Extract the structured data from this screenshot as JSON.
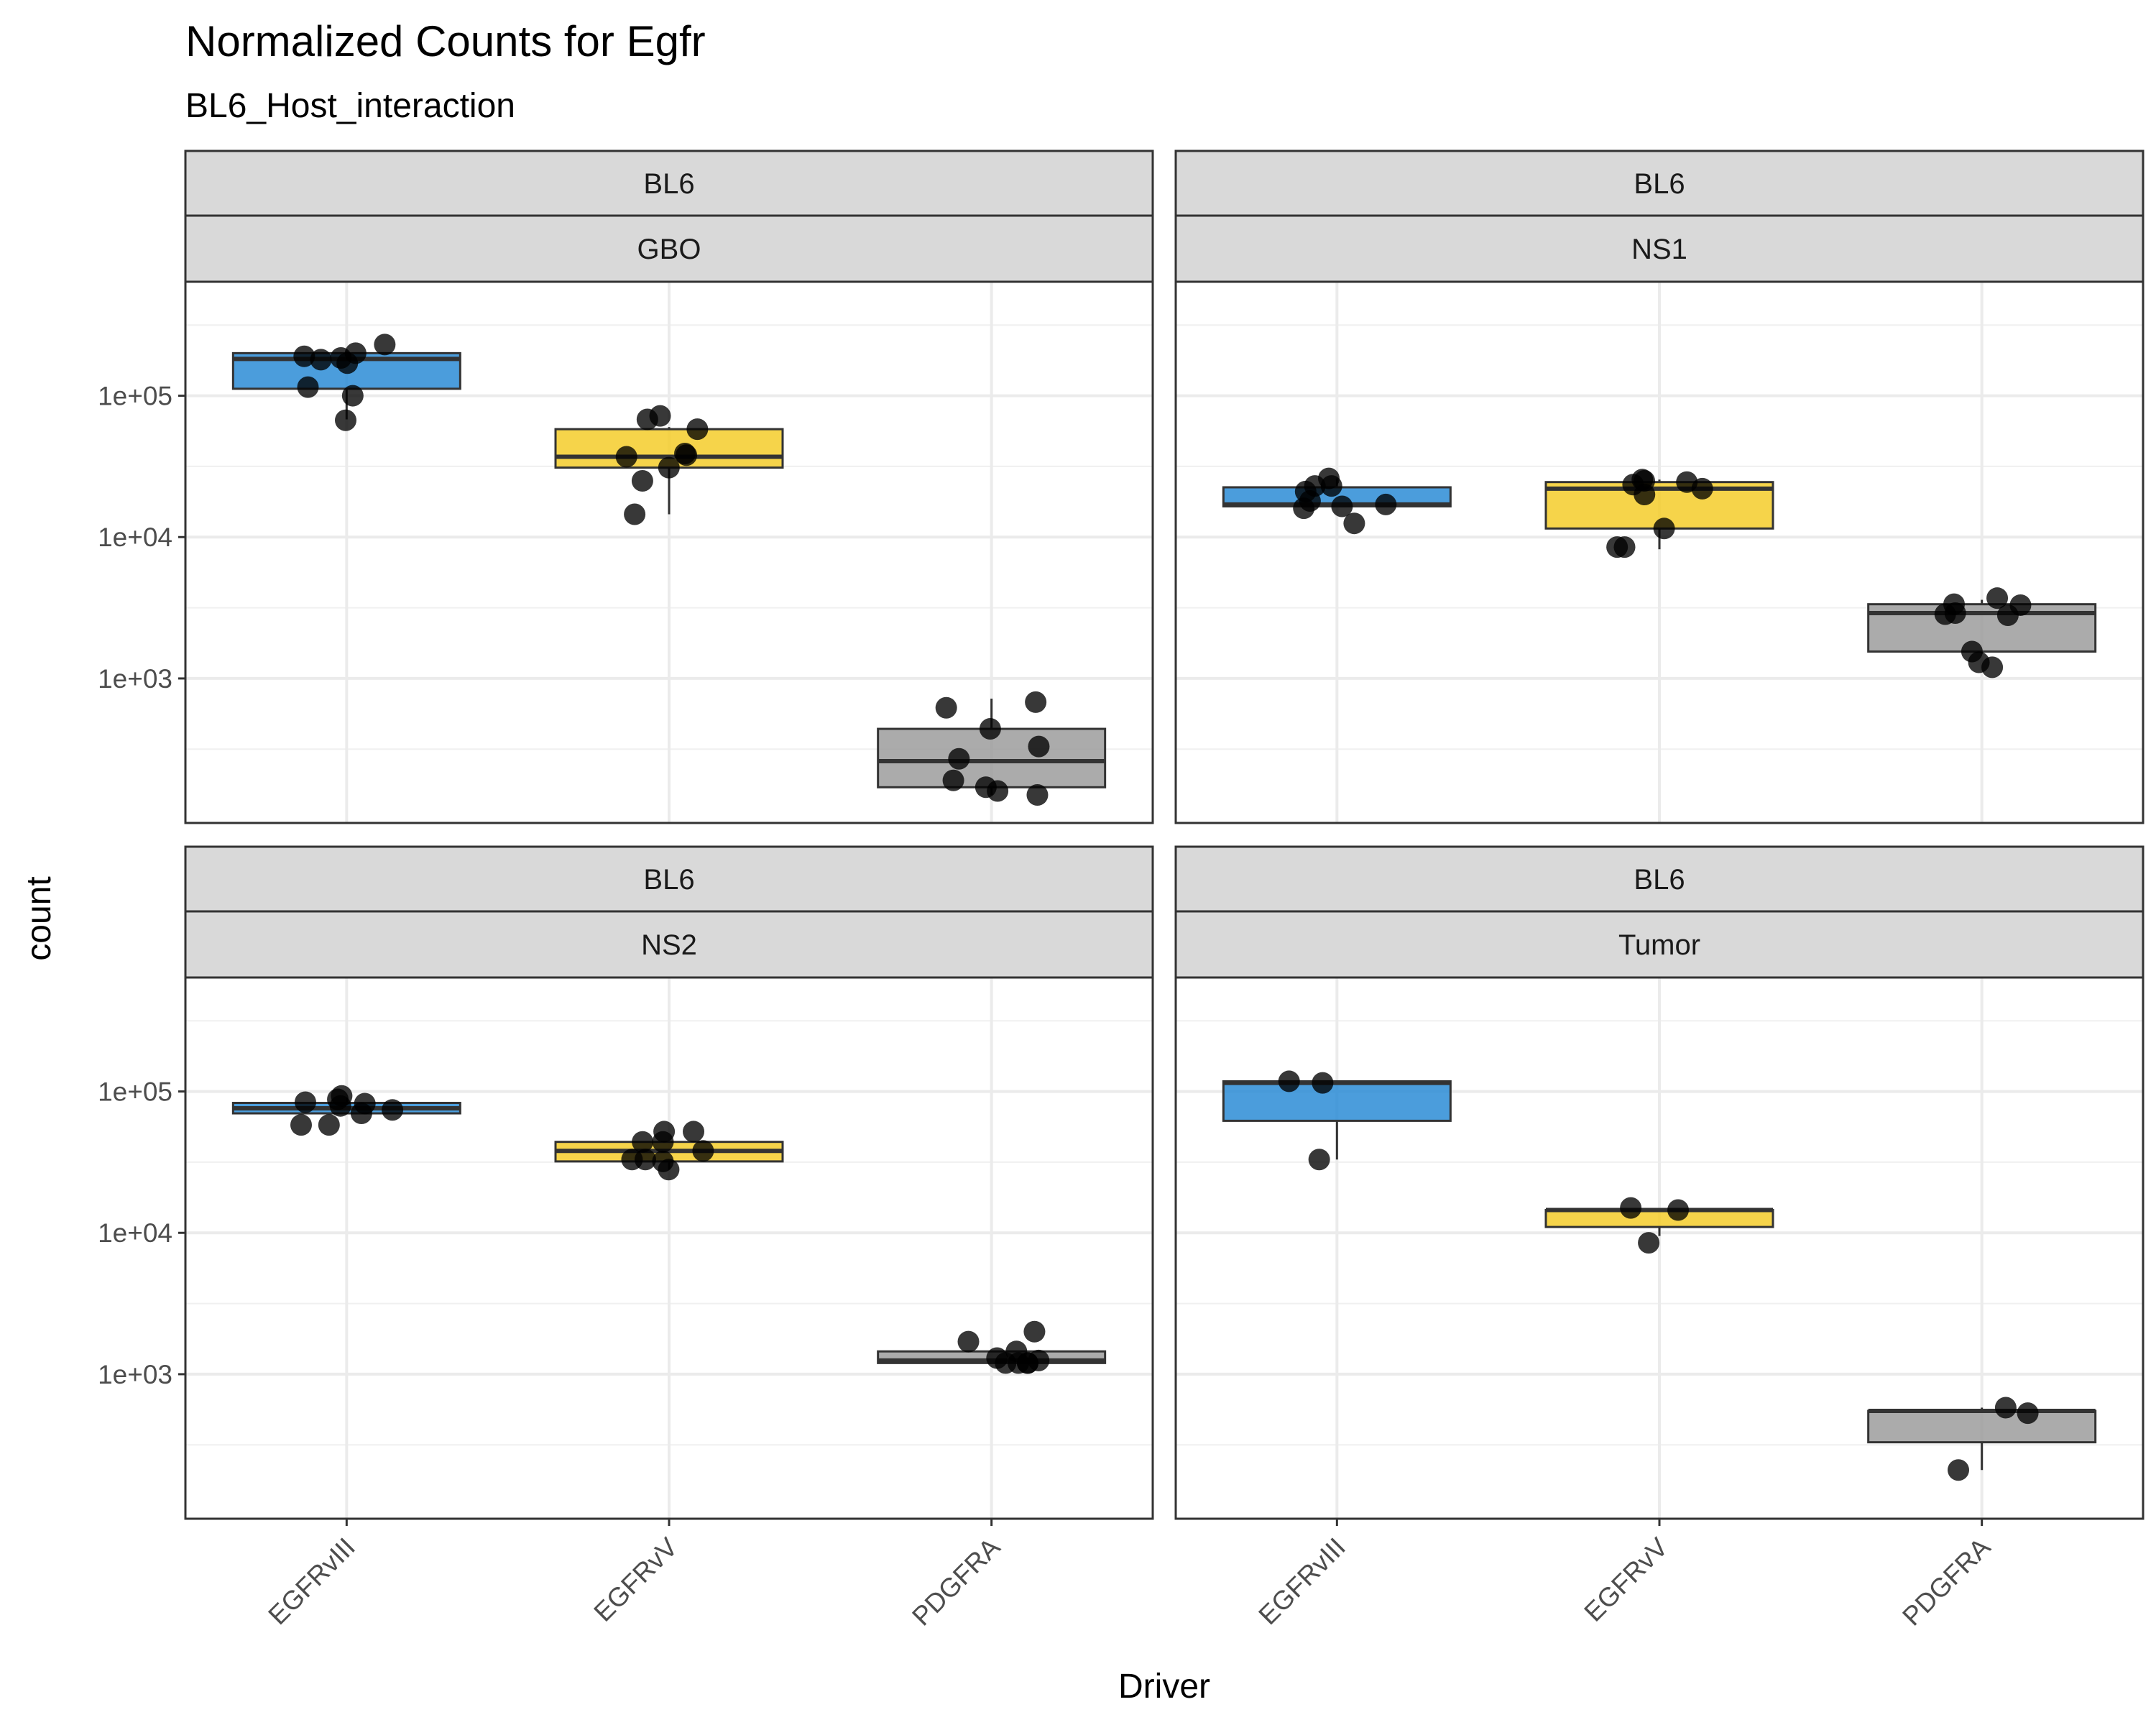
{
  "chart_data": {
    "type": "box",
    "title": "Normalized Counts for Egfr",
    "subtitle": "BL6_Host_interaction",
    "xlabel": "Driver",
    "ylabel": "count",
    "y_scale": "log10",
    "y_ticks": [
      1000,
      10000,
      100000
    ],
    "y_tick_labels": [
      "1e+03",
      "1e+04",
      "1e+05"
    ],
    "ylim": [
      95,
      640000
    ],
    "categories": [
      "EGFRvIII",
      "EGFRvV",
      "PDGFRA"
    ],
    "colors": {
      "EGFRvIII": "#2b8cd6",
      "EGFRvV": "#f5cd2a",
      "PDGFRA": "#9c9c9c"
    },
    "grid": true,
    "legend": "none",
    "panels": [
      {
        "strip_top": "BL6",
        "strip_bottom": "GBO",
        "boxes": {
          "EGFRvIII": {
            "whisker_low": 68000,
            "q1": 112000,
            "median": 182000,
            "q3": 200000,
            "whisker_high": 205000
          },
          "EGFRvV": {
            "whisker_low": 14500,
            "q1": 31000,
            "median": 37000,
            "q3": 58000,
            "whisker_high": 60000
          },
          "PDGFRA": {
            "whisker_low": 150,
            "q1": 170,
            "median": 260,
            "q3": 440,
            "whisker_high": 720
          }
        },
        "points": {
          "EGFRvIII": [
            67000,
            100000,
            115000,
            180000,
            185000,
            170000,
            190000,
            230000,
            200000
          ],
          "EGFRvV": [
            72000,
            68000,
            58000,
            39000,
            37000,
            31000,
            25000,
            38000,
            14500
          ],
          "PDGFRA": [
            160,
            440,
            270,
            620,
            680,
            330,
            190,
            170,
            150
          ]
        }
      },
      {
        "strip_top": "BL6",
        "strip_bottom": "NS1",
        "boxes": {
          "EGFRvIII": {
            "whisker_low": 16500,
            "q1": 16500,
            "median": 17000,
            "q3": 22500,
            "whisker_high": 26000
          },
          "EGFRvV": {
            "whisker_low": 8200,
            "q1": 11500,
            "median": 22000,
            "q3": 24500,
            "whisker_high": 25500
          },
          "PDGFRA": {
            "whisker_low": 1500,
            "q1": 1550,
            "median": 2900,
            "q3": 3350,
            "whisker_high": 3600
          }
        },
        "points": {
          "EGFRvIII": [
            21000,
            26000,
            16500,
            12500,
            23000,
            16000,
            17000,
            23000,
            18000
          ],
          "EGFRvV": [
            11500,
            25500,
            8500,
            24500,
            20000,
            25000,
            8500,
            22000,
            23500
          ],
          "PDGFRA": [
            3300,
            1300,
            2900,
            1200,
            1550,
            2800,
            3700,
            2850,
            3350
          ]
        }
      },
      {
        "strip_top": "BL6",
        "strip_bottom": "NS2",
        "boxes": {
          "EGFRvIII": {
            "whisker_low": 70000,
            "q1": 70000,
            "median": 76000,
            "q3": 83000,
            "whisker_high": 90000
          },
          "EGFRvV": {
            "whisker_low": 28000,
            "q1": 32000,
            "median": 38000,
            "q3": 44000,
            "whisker_high": 44000
          },
          "PDGFRA": {
            "whisker_low": 1200,
            "q1": 1200,
            "median": 1250,
            "q3": 1450,
            "whisker_high": 1450
          }
        },
        "points": {
          "EGFRvIII": [
            93000,
            84000,
            58000,
            88000,
            82000,
            70000,
            74000,
            58000,
            79000
          ],
          "EGFRvV": [
            28000,
            32000,
            38000,
            52000,
            44000,
            33000,
            44000,
            52000,
            33000
          ],
          "PDGFRA": [
            1700,
            1200,
            1200,
            1250,
            2000,
            1200,
            1450,
            1200,
            1300
          ]
        }
      },
      {
        "strip_top": "BL6",
        "strip_bottom": "Tumor",
        "boxes": {
          "EGFRvIII": {
            "whisker_low": 33000,
            "q1": 62000,
            "median": 115000,
            "q3": 118000,
            "whisker_high": 118000
          },
          "EGFRvV": {
            "whisker_low": 9500,
            "q1": 11000,
            "median": 14500,
            "q3": 14500,
            "whisker_high": 14500
          },
          "PDGFRA": {
            "whisker_low": 210,
            "q1": 330,
            "median": 550,
            "q3": 550,
            "whisker_high": 580
          }
        },
        "points": {
          "EGFRvIII": [
            118000,
            33000,
            115000
          ],
          "EGFRvV": [
            15000,
            8500,
            14500
          ],
          "PDGFRA": [
            580,
            210,
            530
          ]
        }
      }
    ]
  }
}
